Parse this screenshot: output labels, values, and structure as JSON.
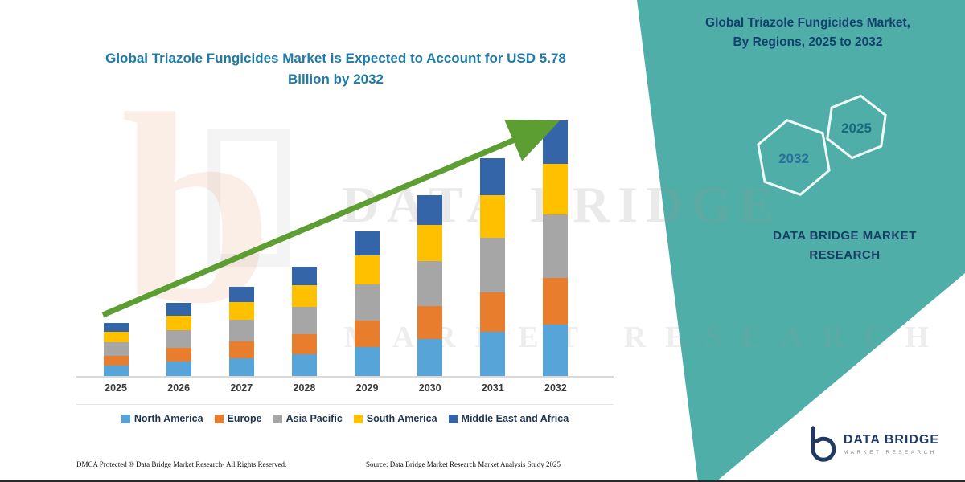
{
  "chart_data": {
    "type": "bar",
    "stacked": true,
    "title": "Global Triazole Fungicides Market is Expected to Account for USD 5.78 Billion by 2032",
    "categories": [
      "2025",
      "2026",
      "2027",
      "2028",
      "2029",
      "2030",
      "2031",
      "2032"
    ],
    "series": [
      {
        "name": "North America",
        "color": "#57A4D8",
        "values": [
          0.24,
          0.33,
          0.41,
          0.5,
          0.66,
          0.83,
          1.0,
          1.16
        ]
      },
      {
        "name": "Europe",
        "color": "#E87D2E",
        "values": [
          0.22,
          0.3,
          0.37,
          0.45,
          0.6,
          0.75,
          0.9,
          1.05
        ]
      },
      {
        "name": "Asia Pacific",
        "color": "#A6A6A6",
        "values": [
          0.3,
          0.41,
          0.5,
          0.61,
          0.81,
          1.02,
          1.22,
          1.44
        ]
      },
      {
        "name": "South America",
        "color": "#FFC000",
        "values": [
          0.24,
          0.33,
          0.4,
          0.49,
          0.65,
          0.81,
          0.98,
          1.15
        ]
      },
      {
        "name": "Middle East and Africa",
        "color": "#3465A8",
        "values": [
          0.2,
          0.28,
          0.34,
          0.42,
          0.55,
          0.69,
          0.83,
          0.98
        ]
      }
    ],
    "totals": [
      1.2,
      1.65,
      2.02,
      2.47,
      3.27,
      4.1,
      4.93,
      5.78
    ],
    "unit": "USD Billion",
    "ylim": [
      0,
      6
    ],
    "legend_position": "bottom",
    "grid": false,
    "y_axis_visible": false
  },
  "side_panel": {
    "title_line1": "Global Triazole Fungicides Market,",
    "title_line2": "By Regions, 2025 to 2032",
    "hexagons": [
      {
        "label": "2032"
      },
      {
        "label": "2025"
      }
    ],
    "brand_line1": "DATA BRIDGE MARKET",
    "brand_line2": "RESEARCH",
    "background_color": "#4FAFA8"
  },
  "watermark": {
    "line1": "DATA BRIDGE",
    "line2": "MARKET RESEARCH"
  },
  "footer": {
    "left": "DMCA Protected ® Data Bridge Market Research-  All Rights Reserved.",
    "source": "Source: Data Bridge Market Research  Market Analysis Study 2025"
  },
  "logo": {
    "name": "DATA BRIDGE",
    "subtitle": "MARKET RESEARCH"
  },
  "colors": {
    "title": "#1F7BA8",
    "arrow": "#5D9E33",
    "panel_text": "#14406E",
    "axis_label": "#3A3A3A"
  }
}
